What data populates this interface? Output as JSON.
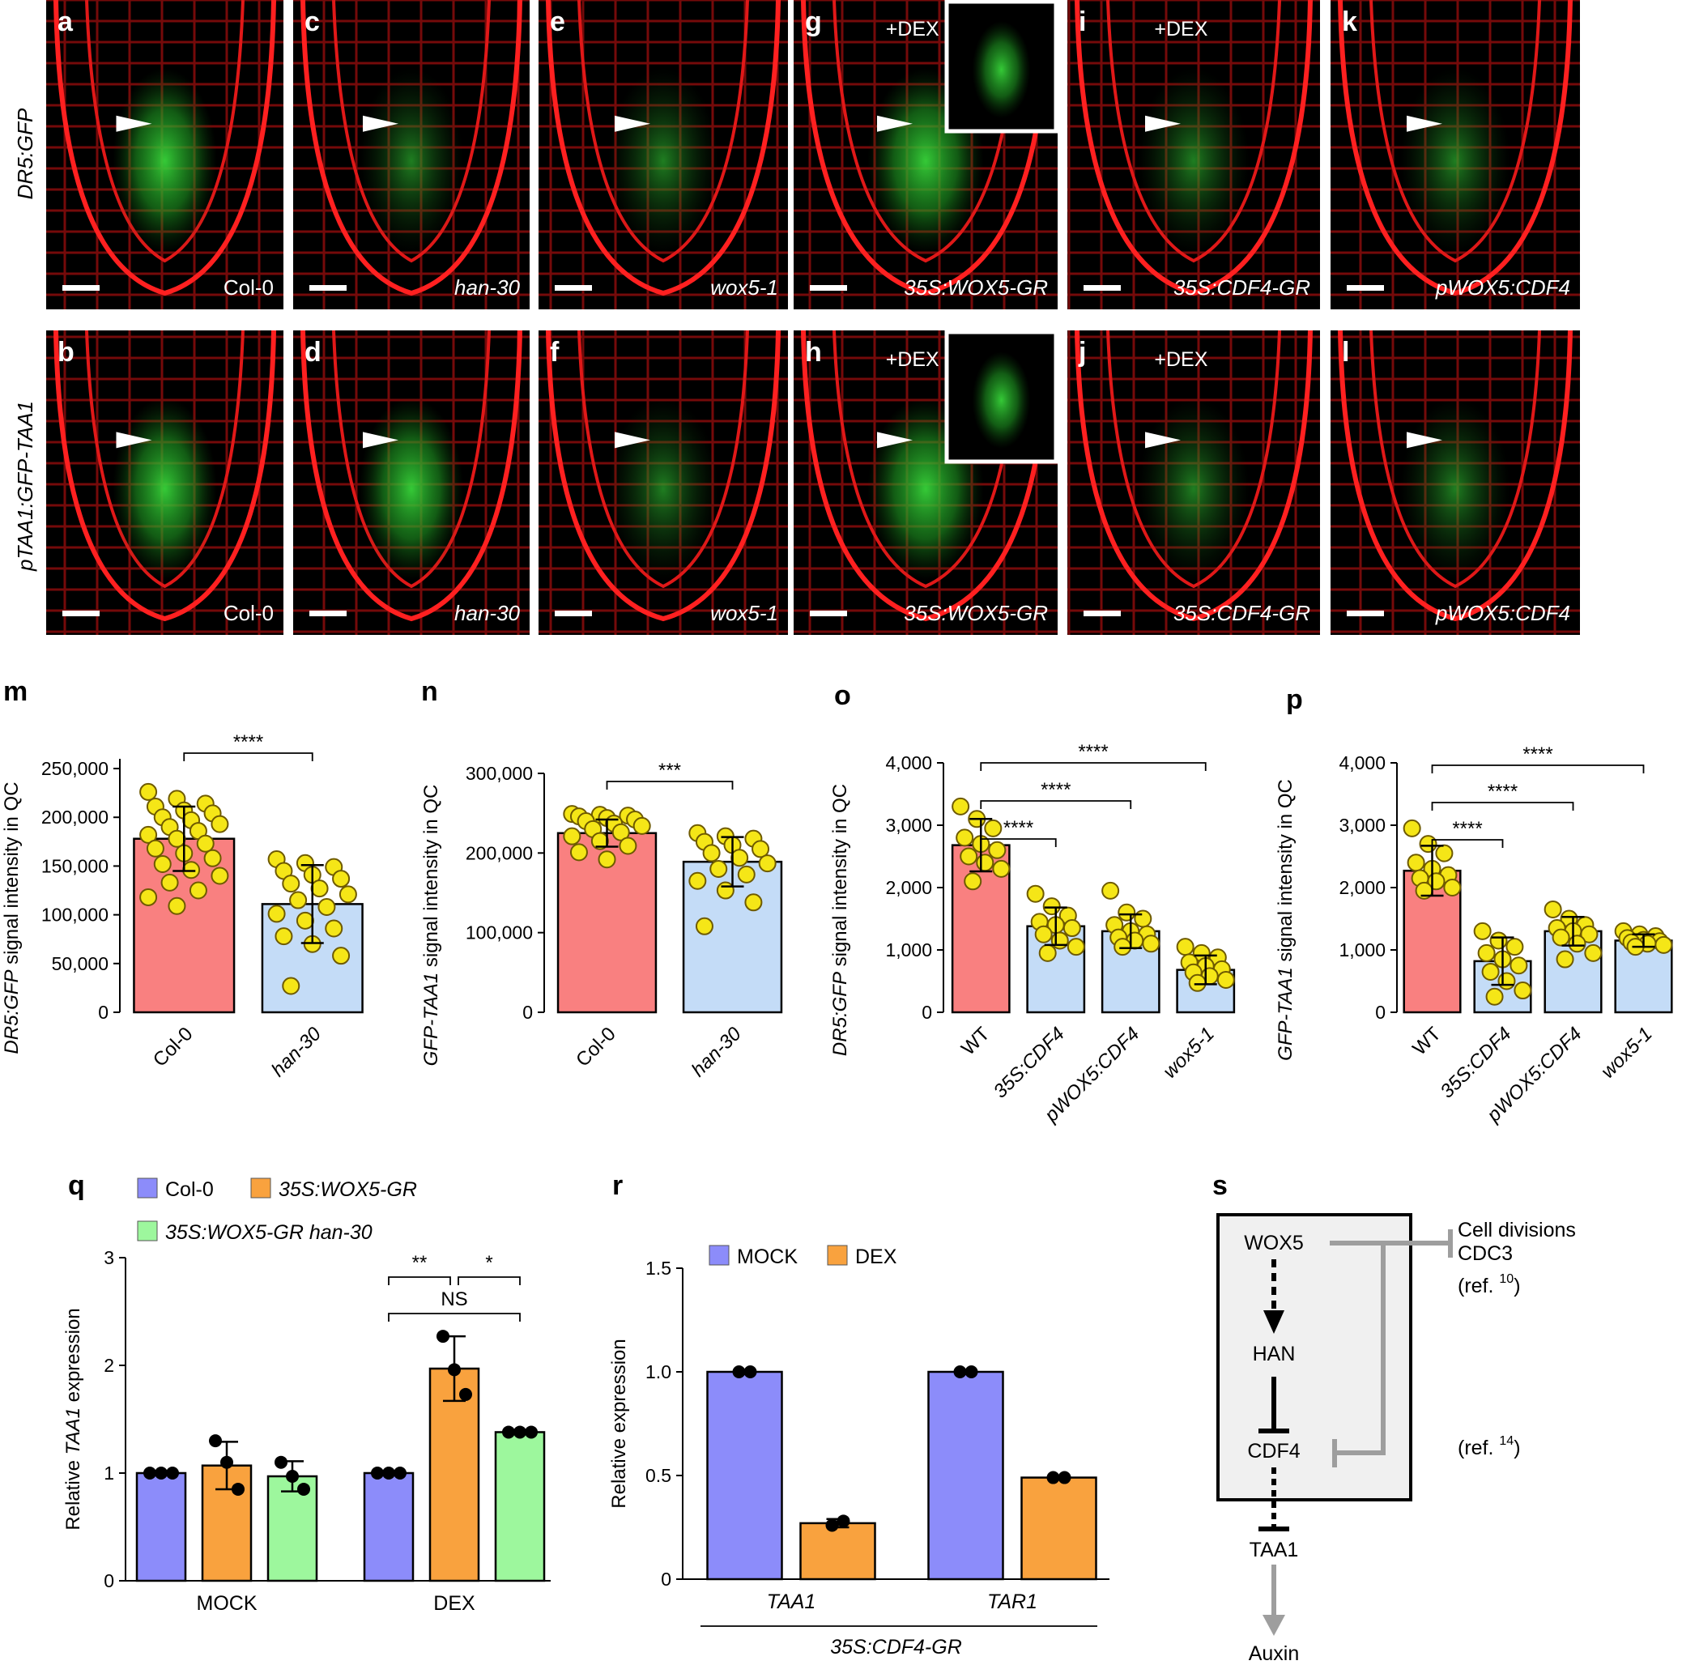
{
  "micrograph_grid": {
    "row_labels": [
      "DR5:GFP",
      "pTAA1:GFP-TAA1"
    ],
    "panels": [
      {
        "letter": "a",
        "caption": "Col-0",
        "dex": "",
        "inset": false,
        "italic": false
      },
      {
        "letter": "c",
        "caption": "han-30",
        "dex": "",
        "inset": false,
        "italic": true
      },
      {
        "letter": "e",
        "caption": "wox5-1",
        "dex": "",
        "inset": false,
        "italic": true
      },
      {
        "letter": "g",
        "caption": "35S:WOX5-GR",
        "dex": "+DEX",
        "inset": true,
        "italic": true
      },
      {
        "letter": "i",
        "caption": "35S:CDF4-GR",
        "dex": "+DEX",
        "inset": false,
        "italic": true
      },
      {
        "letter": "k",
        "caption": "pWOX5:CDF4",
        "dex": "",
        "inset": false,
        "italic": true
      },
      {
        "letter": "b",
        "caption": "Col-0",
        "dex": "",
        "inset": false,
        "italic": false
      },
      {
        "letter": "d",
        "caption": "han-30",
        "dex": "",
        "inset": false,
        "italic": true
      },
      {
        "letter": "f",
        "caption": "wox5-1",
        "dex": "",
        "inset": false,
        "italic": true
      },
      {
        "letter": "h",
        "caption": "35S:WOX5-GR",
        "dex": "+DEX",
        "inset": true,
        "italic": true
      },
      {
        "letter": "j",
        "caption": "35S:CDF4-GR",
        "dex": "+DEX",
        "inset": false,
        "italic": true
      },
      {
        "letter": "l",
        "caption": "pWOX5:CDF4",
        "dex": "",
        "inset": false,
        "italic": true
      }
    ]
  },
  "chart_data": [
    {
      "panel": "m",
      "type": "bar",
      "ylabel_italic": "DR5:GFP",
      "ylabel_rest": " signal intensity in QC",
      "categories": [
        "Col-0",
        "han-30"
      ],
      "category_italic": [
        false,
        true
      ],
      "values": [
        178000,
        111000
      ],
      "error": [
        33000,
        40000
      ],
      "yticks": [
        0,
        50000,
        100000,
        150000,
        200000,
        250000
      ],
      "ytick_labels": [
        "0",
        "50,000",
        "100,000",
        "150,000",
        "200,000",
        "250,000"
      ],
      "ylim": [
        0,
        260000
      ],
      "bar_colors": [
        "#f98080",
        "#c4dcf7"
      ],
      "points": [
        [
          226000,
          219000,
          214000,
          211000,
          207000,
          204000,
          200000,
          197000,
          193000,
          190000,
          186000,
          182000,
          178000,
          173000,
          168000,
          163000,
          158000,
          152000,
          146000,
          140000,
          133000,
          125000,
          118000,
          109000
        ],
        [
          157000,
          153000,
          149000,
          145000,
          141000,
          137000,
          132000,
          127000,
          121000,
          115000,
          108000,
          101000,
          94000,
          86000,
          78000,
          70000,
          58000,
          27000
        ]
      ],
      "significance": [
        {
          "from": 0,
          "to": 1,
          "label": "****",
          "level": 0
        }
      ]
    },
    {
      "panel": "n",
      "type": "bar",
      "ylabel_italic": "GFP-TAA1",
      "ylabel_rest": " signal intensity in QC",
      "categories": [
        "Col-0",
        "han-30"
      ],
      "category_italic": [
        false,
        true
      ],
      "values": [
        225000,
        189000
      ],
      "error": [
        17000,
        31000
      ],
      "yticks": [
        0,
        100000,
        200000,
        300000
      ],
      "ytick_labels": [
        "0",
        "100,000",
        "200,000",
        "300,000"
      ],
      "ylim": [
        0,
        300000
      ],
      "bar_colors": [
        "#f98080",
        "#c4dcf7"
      ],
      "points": [
        [
          249000,
          248000,
          247000,
          246000,
          244000,
          242000,
          240000,
          237000,
          234000,
          230000,
          226000,
          221000,
          215000,
          209000,
          201000,
          192000
        ],
        [
          225000,
          221000,
          218000,
          214000,
          210000,
          205000,
          200000,
          194000,
          187000,
          180000,
          173000,
          165000,
          153000,
          138000,
          108000
        ]
      ],
      "significance": [
        {
          "from": 0,
          "to": 1,
          "label": "***",
          "level": 0
        }
      ]
    },
    {
      "panel": "o",
      "type": "bar",
      "ylabel_italic": "DR5:GFP",
      "ylabel_rest": " signal intensity in QC",
      "categories": [
        "WT",
        "35S:CDF4",
        "pWOX5:CDF4",
        "wox5-1"
      ],
      "category_italic": [
        false,
        true,
        true,
        true
      ],
      "values": [
        2680,
        1380,
        1300,
        680
      ],
      "error": [
        420,
        300,
        270,
        230
      ],
      "yticks": [
        0,
        1000,
        2000,
        3000,
        4000
      ],
      "ytick_labels": [
        "0",
        "1,000",
        "2,000",
        "3,000",
        "4,000"
      ],
      "ylim": [
        0,
        4000
      ],
      "bar_colors": [
        "#f98080",
        "#c4dcf7",
        "#c4dcf7",
        "#c4dcf7"
      ],
      "points": [
        [
          3300,
          3100,
          2950,
          2800,
          2700,
          2600,
          2500,
          2400,
          2300,
          2100
        ],
        [
          1900,
          1700,
          1550,
          1450,
          1400,
          1350,
          1250,
          1150,
          1050,
          950
        ],
        [
          1950,
          1600,
          1500,
          1400,
          1300,
          1250,
          1200,
          1150,
          1100,
          1050
        ],
        [
          1050,
          950,
          880,
          800,
          740,
          690,
          640,
          580,
          520,
          470
        ]
      ],
      "significance": [
        {
          "from": 0,
          "to": 1,
          "label": "****",
          "level": 0
        },
        {
          "from": 0,
          "to": 2,
          "label": "****",
          "level": 1
        },
        {
          "from": 0,
          "to": 3,
          "label": "****",
          "level": 2
        }
      ]
    },
    {
      "panel": "p",
      "type": "bar",
      "ylabel_italic": "GFP-TAA1",
      "ylabel_rest": " signal intensity in QC",
      "categories": [
        "WT",
        "35S:CDF4",
        "pWOX5:CDF4",
        "wox5-1"
      ],
      "category_italic": [
        false,
        true,
        true,
        true
      ],
      "values": [
        2270,
        820,
        1300,
        1150
      ],
      "error": [
        400,
        380,
        230,
        100
      ],
      "yticks": [
        0,
        1000,
        2000,
        3000,
        4000
      ],
      "ytick_labels": [
        "0",
        "1,000",
        "2,000",
        "3,000",
        "4,000"
      ],
      "ylim": [
        0,
        4000
      ],
      "bar_colors": [
        "#f98080",
        "#c4dcf7",
        "#c4dcf7",
        "#c4dcf7"
      ],
      "points": [
        [
          2950,
          2700,
          2550,
          2400,
          2300,
          2200,
          2150,
          2100,
          2000,
          1950
        ],
        [
          1300,
          1150,
          1050,
          950,
          850,
          750,
          650,
          500,
          350,
          250
        ],
        [
          1650,
          1500,
          1400,
          1350,
          1300,
          1250,
          1200,
          1100,
          950,
          850
        ],
        [
          1300,
          1250,
          1220,
          1190,
          1160,
          1140,
          1120,
          1100,
          1080,
          1050
        ]
      ],
      "significance": [
        {
          "from": 0,
          "to": 1,
          "label": "****",
          "level": 0
        },
        {
          "from": 0,
          "to": 2,
          "label": "****",
          "level": 1
        },
        {
          "from": 0,
          "to": 3,
          "label": "****",
          "level": 2
        }
      ]
    },
    {
      "panel": "q",
      "type": "bar",
      "ylabel_pre": "Relative ",
      "ylabel_italic": "TAA1",
      "ylabel_rest": " expression",
      "groups": [
        "MOCK",
        "DEX"
      ],
      "series": [
        {
          "name": "Col-0",
          "color": "#8c8cfa",
          "values": [
            1.0,
            1.0
          ],
          "error": [
            0,
            0
          ],
          "points": [
            [
              1.0,
              1.0,
              1.0
            ],
            [
              1.0,
              1.0,
              1.0
            ]
          ]
        },
        {
          "name": "35S:WOX5-GR",
          "color": "#f9a23e",
          "values": [
            1.07,
            1.97
          ],
          "error": [
            0.22,
            0.3
          ],
          "points": [
            [
              1.3,
              1.1,
              0.85
            ],
            [
              2.27,
              1.96,
              1.73
            ]
          ]
        },
        {
          "name": "35S:WOX5-GR han-30",
          "color": "#9df79d",
          "values": [
            0.97,
            1.38
          ],
          "error": [
            0.14,
            0
          ],
          "points": [
            [
              1.1,
              0.97,
              0.85
            ],
            [
              1.38,
              1.38,
              1.38
            ]
          ]
        }
      ],
      "yticks": [
        0,
        1,
        2,
        3
      ],
      "ytick_labels": [
        "0",
        "1",
        "2",
        "3"
      ],
      "ylim": [
        0,
        3
      ],
      "significance": [
        {
          "label": "**",
          "group": 1,
          "from": 0,
          "to": 1,
          "level": 0
        },
        {
          "label": "*",
          "group": 1,
          "from": 1,
          "to": 2,
          "level": 0
        },
        {
          "label": "NS",
          "group": 1,
          "from": 0,
          "to": 2,
          "level": 1
        }
      ]
    },
    {
      "panel": "r",
      "type": "bar",
      "ylabel": "Relative expression",
      "groups": [
        "TAA1",
        "TAR1"
      ],
      "group_caption": "35S:CDF4-GR",
      "series": [
        {
          "name": "MOCK",
          "color": "#8c8cfa",
          "values": [
            1.0,
            1.0
          ],
          "error": [
            0,
            0
          ],
          "points": [
            [
              1.0,
              1.0
            ],
            [
              1.0,
              1.0
            ]
          ]
        },
        {
          "name": "DEX",
          "color": "#f9a23e",
          "values": [
            0.27,
            0.49
          ],
          "error": [
            0.02,
            0
          ],
          "points": [
            [
              0.26,
              0.28
            ],
            [
              0.49,
              0.49
            ]
          ]
        }
      ],
      "yticks": [
        0,
        0.5,
        1.0,
        1.5
      ],
      "ytick_labels": [
        "0",
        "0.5",
        "1.0",
        "1.5"
      ],
      "ylim": [
        0,
        1.5
      ]
    }
  ],
  "model": {
    "letter": "s",
    "nodes": [
      "WOX5",
      "HAN",
      "CDF4",
      "TAA1",
      "Auxin"
    ],
    "side_top": [
      "Cell divisions",
      "CDC3"
    ],
    "ref_top": "(ref. ",
    "ref_top_num": "10",
    "ref_bottom": "(ref. ",
    "ref_bottom_num": "14"
  }
}
